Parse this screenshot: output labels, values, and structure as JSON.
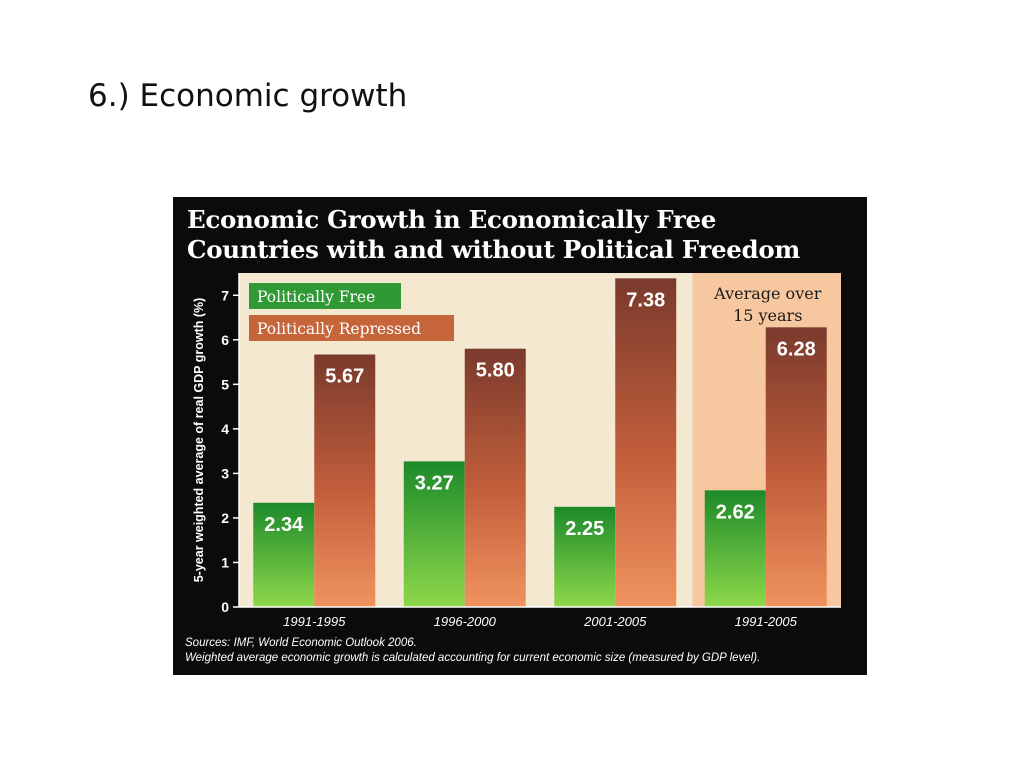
{
  "slide": {
    "title": "6.) Economic growth"
  },
  "chart_data": {
    "type": "bar",
    "title": "Economic Growth in Economically Free Countries with and without Political Freedom",
    "title_lines": [
      "Economic Growth in Economically Free",
      "Countries with and without Political Freedom"
    ],
    "ylabel": "5-year weighted average of real GDP growth (%)",
    "xlabel": "",
    "ylim": [
      0,
      7.5
    ],
    "yticks": [
      0,
      1,
      2,
      3,
      4,
      5,
      6,
      7
    ],
    "categories": [
      "1991-1995",
      "1996-2000",
      "2001-2005",
      "1991-2005"
    ],
    "series": [
      {
        "name": "Politically Free",
        "values": [
          2.34,
          3.27,
          2.25,
          2.62
        ],
        "labels": [
          "2.34",
          "3.27",
          "2.25",
          "2.62"
        ],
        "color": "#2f9a34"
      },
      {
        "name": "Politically Repressed",
        "values": [
          5.67,
          5.8,
          7.38,
          6.28
        ],
        "labels": [
          "5.67",
          "5.80",
          "7.38",
          "6.28"
        ],
        "color": "#c6643a"
      }
    ],
    "highlight": {
      "category": "1991-2005",
      "label_lines": [
        "Average over",
        "15 years"
      ]
    },
    "legend": "top-left",
    "grid": false,
    "colors": {
      "panel": "#0b0b0b",
      "plot_bg": "#f5e8d0",
      "highlight_bg": "#f7c7a0"
    },
    "sources": [
      "Sources: IMF, World Economic Outlook 2006.",
      "Weighted average economic growth is calculated accounting for current economic size (measured by GDP level)."
    ]
  }
}
